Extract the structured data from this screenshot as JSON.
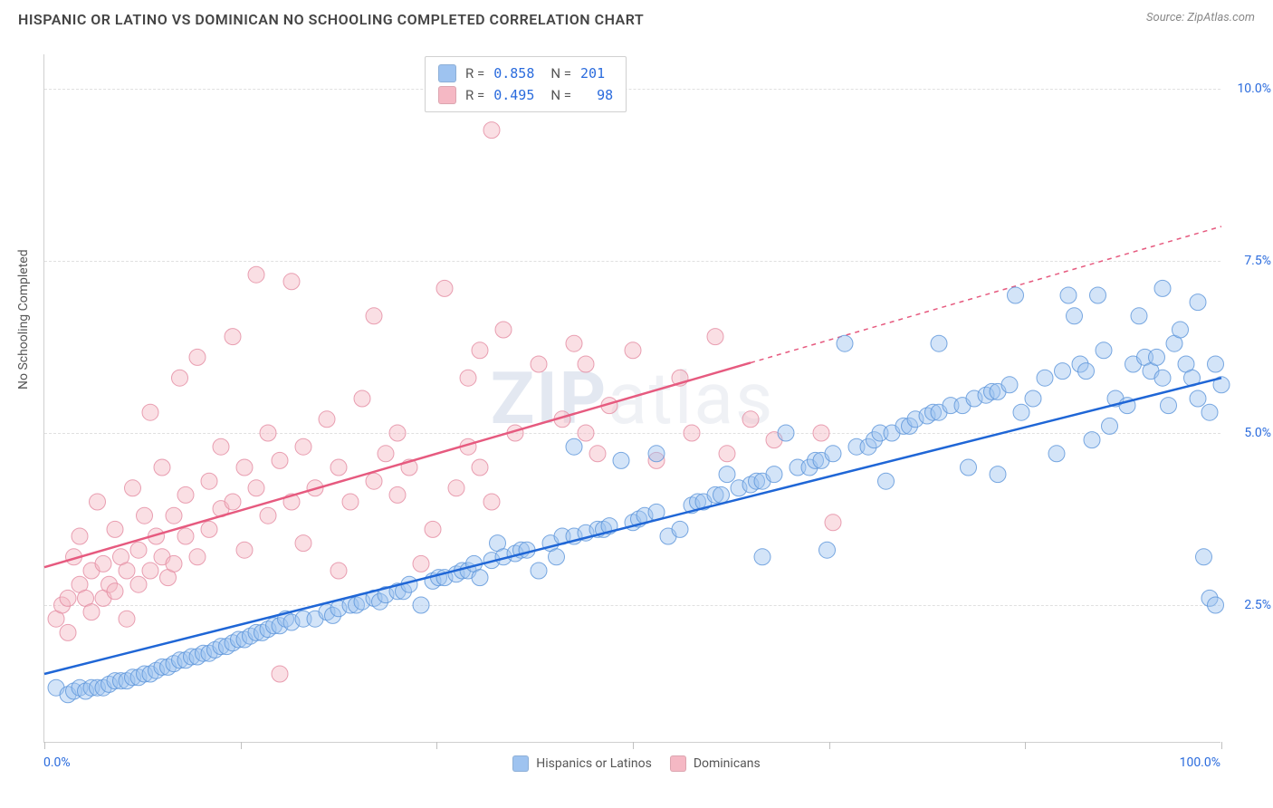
{
  "title": "HISPANIC OR LATINO VS DOMINICAN NO SCHOOLING COMPLETED CORRELATION CHART",
  "source_label": "Source: ZipAtlas.com",
  "y_axis_label": "No Schooling Completed",
  "watermark": {
    "bold": "ZIP",
    "rest": "atlas"
  },
  "chart": {
    "type": "scatter",
    "xlim": [
      0,
      100
    ],
    "ylim": [
      0.5,
      10.5
    ],
    "x_tick_positions": [
      0,
      16.67,
      33.33,
      50,
      66.67,
      83.33,
      100
    ],
    "x_tick_labels_shown": {
      "left": "0.0%",
      "right": "100.0%"
    },
    "y_gridlines": [
      2.5,
      5.0,
      7.5,
      10.0
    ],
    "y_tick_labels": [
      "2.5%",
      "5.0%",
      "7.5%",
      "10.0%"
    ],
    "background_color": "#ffffff",
    "grid_color": "#e0e0e0",
    "axis_color": "#d0d0d0",
    "marker_radius": 9,
    "marker_opacity": 0.45,
    "marker_stroke_opacity": 0.8,
    "line_width": 2.5
  },
  "stats_legend": {
    "rows": [
      {
        "color": "#9ec3f0",
        "r_label": "R =",
        "r_value": "0.858",
        "n_label": "N =",
        "n_value": "201"
      },
      {
        "color": "#f5b8c4",
        "r_label": "R =",
        "r_value": "0.495",
        "n_label": "N =",
        "n_value": "  98"
      }
    ],
    "value_color": "#2a6bdd"
  },
  "bottom_legend": {
    "items": [
      {
        "label": "Hispanics or Latinos",
        "color": "#9ec3f0"
      },
      {
        "label": "Dominicans",
        "color": "#f5b8c4"
      }
    ]
  },
  "series": {
    "hispanic": {
      "color_fill": "#9ec3f0",
      "color_stroke": "#5a94d9",
      "trend": {
        "x1": 0,
        "y1": 1.5,
        "x2": 100,
        "y2": 5.8,
        "dash_from_x": null,
        "color": "#1f66d6"
      },
      "points": [
        [
          1,
          1.3
        ],
        [
          2,
          1.2
        ],
        [
          2.5,
          1.25
        ],
        [
          3,
          1.3
        ],
        [
          3.5,
          1.25
        ],
        [
          4,
          1.3
        ],
        [
          4.5,
          1.3
        ],
        [
          5,
          1.3
        ],
        [
          5.5,
          1.35
        ],
        [
          6,
          1.4
        ],
        [
          6.5,
          1.4
        ],
        [
          7,
          1.4
        ],
        [
          7.5,
          1.45
        ],
        [
          8,
          1.45
        ],
        [
          8.5,
          1.5
        ],
        [
          9,
          1.5
        ],
        [
          9.5,
          1.55
        ],
        [
          10,
          1.6
        ],
        [
          10.5,
          1.6
        ],
        [
          11,
          1.65
        ],
        [
          11.5,
          1.7
        ],
        [
          12,
          1.7
        ],
        [
          12.5,
          1.75
        ],
        [
          13,
          1.75
        ],
        [
          13.5,
          1.8
        ],
        [
          14,
          1.8
        ],
        [
          14.5,
          1.85
        ],
        [
          15,
          1.9
        ],
        [
          15.5,
          1.9
        ],
        [
          16,
          1.95
        ],
        [
          16.5,
          2.0
        ],
        [
          17,
          2.0
        ],
        [
          17.5,
          2.05
        ],
        [
          18,
          2.1
        ],
        [
          18.5,
          2.1
        ],
        [
          19,
          2.15
        ],
        [
          19.5,
          2.2
        ],
        [
          20,
          2.2
        ],
        [
          20.5,
          2.3
        ],
        [
          21,
          2.25
        ],
        [
          22,
          2.3
        ],
        [
          23,
          2.3
        ],
        [
          24,
          2.4
        ],
        [
          24.5,
          2.35
        ],
        [
          25,
          2.45
        ],
        [
          26,
          2.5
        ],
        [
          26.5,
          2.5
        ],
        [
          27,
          2.55
        ],
        [
          28,
          2.6
        ],
        [
          28.5,
          2.55
        ],
        [
          29,
          2.65
        ],
        [
          30,
          2.7
        ],
        [
          30.5,
          2.7
        ],
        [
          31,
          2.8
        ],
        [
          32,
          2.5
        ],
        [
          33,
          2.85
        ],
        [
          33.5,
          2.9
        ],
        [
          34,
          2.9
        ],
        [
          35,
          2.95
        ],
        [
          35.5,
          3.0
        ],
        [
          36,
          3.0
        ],
        [
          36.5,
          3.1
        ],
        [
          37,
          2.9
        ],
        [
          38,
          3.15
        ],
        [
          38.5,
          3.4
        ],
        [
          39,
          3.2
        ],
        [
          40,
          3.25
        ],
        [
          40.5,
          3.3
        ],
        [
          41,
          3.3
        ],
        [
          42,
          3.0
        ],
        [
          43,
          3.4
        ],
        [
          43.5,
          3.2
        ],
        [
          44,
          3.5
        ],
        [
          45,
          3.5
        ],
        [
          45,
          4.8
        ],
        [
          46,
          3.55
        ],
        [
          47,
          3.6
        ],
        [
          47.5,
          3.6
        ],
        [
          48,
          3.65
        ],
        [
          49,
          4.6
        ],
        [
          50,
          3.7
        ],
        [
          50.5,
          3.75
        ],
        [
          51,
          3.8
        ],
        [
          52,
          3.85
        ],
        [
          52,
          4.7
        ],
        [
          53,
          3.5
        ],
        [
          54,
          3.6
        ],
        [
          55,
          3.95
        ],
        [
          55.5,
          4.0
        ],
        [
          56,
          4.0
        ],
        [
          57,
          4.1
        ],
        [
          57.5,
          4.1
        ],
        [
          58,
          4.4
        ],
        [
          59,
          4.2
        ],
        [
          60,
          4.25
        ],
        [
          60.5,
          4.3
        ],
        [
          61,
          4.3
        ],
        [
          61,
          3.2
        ],
        [
          62,
          4.4
        ],
        [
          63,
          5.0
        ],
        [
          64,
          4.5
        ],
        [
          65,
          4.5
        ],
        [
          65.5,
          4.6
        ],
        [
          66,
          4.6
        ],
        [
          66.5,
          3.3
        ],
        [
          67,
          4.7
        ],
        [
          68,
          6.3
        ],
        [
          69,
          4.8
        ],
        [
          70,
          4.8
        ],
        [
          70.5,
          4.9
        ],
        [
          71,
          5.0
        ],
        [
          71.5,
          4.3
        ],
        [
          72,
          5.0
        ],
        [
          73,
          5.1
        ],
        [
          73.5,
          5.1
        ],
        [
          74,
          5.2
        ],
        [
          75,
          5.25
        ],
        [
          75.5,
          5.3
        ],
        [
          76,
          5.3
        ],
        [
          76,
          6.3
        ],
        [
          77,
          5.4
        ],
        [
          78,
          5.4
        ],
        [
          78.5,
          4.5
        ],
        [
          79,
          5.5
        ],
        [
          80,
          5.55
        ],
        [
          80.5,
          5.6
        ],
        [
          81,
          5.6
        ],
        [
          81,
          4.4
        ],
        [
          82,
          5.7
        ],
        [
          82.5,
          7.0
        ],
        [
          83,
          5.3
        ],
        [
          84,
          5.5
        ],
        [
          85,
          5.8
        ],
        [
          86,
          4.7
        ],
        [
          86.5,
          5.9
        ],
        [
          87,
          7.0
        ],
        [
          87.5,
          6.7
        ],
        [
          88,
          6.0
        ],
        [
          88.5,
          5.9
        ],
        [
          89,
          4.9
        ],
        [
          89.5,
          7.0
        ],
        [
          90,
          6.2
        ],
        [
          90.5,
          5.1
        ],
        [
          91,
          5.5
        ],
        [
          92,
          5.4
        ],
        [
          92.5,
          6.0
        ],
        [
          93,
          6.7
        ],
        [
          93.5,
          6.1
        ],
        [
          94,
          5.9
        ],
        [
          94.5,
          6.1
        ],
        [
          95,
          5.8
        ],
        [
          95,
          7.1
        ],
        [
          95.5,
          5.4
        ],
        [
          96,
          6.3
        ],
        [
          96.5,
          6.5
        ],
        [
          97,
          6.0
        ],
        [
          97.5,
          5.8
        ],
        [
          98,
          5.5
        ],
        [
          98,
          6.9
        ],
        [
          98.5,
          3.2
        ],
        [
          99,
          5.3
        ],
        [
          99,
          2.6
        ],
        [
          99.5,
          2.5
        ],
        [
          99.5,
          6.0
        ],
        [
          100,
          5.7
        ]
      ]
    },
    "dominican": {
      "color_fill": "#f5b8c4",
      "color_stroke": "#e38aa0",
      "trend": {
        "x1": 0,
        "y1": 3.05,
        "x2": 100,
        "y2": 8.0,
        "dash_from_x": 60,
        "color": "#e65a7f"
      },
      "points": [
        [
          1,
          2.3
        ],
        [
          1.5,
          2.5
        ],
        [
          2,
          2.6
        ],
        [
          2,
          2.1
        ],
        [
          2.5,
          3.2
        ],
        [
          3,
          2.8
        ],
        [
          3,
          3.5
        ],
        [
          3.5,
          2.6
        ],
        [
          4,
          3.0
        ],
        [
          4,
          2.4
        ],
        [
          4.5,
          4.0
        ],
        [
          5,
          3.1
        ],
        [
          5,
          2.6
        ],
        [
          5.5,
          2.8
        ],
        [
          6,
          3.6
        ],
        [
          6,
          2.7
        ],
        [
          6.5,
          3.2
        ],
        [
          7,
          3.0
        ],
        [
          7,
          2.3
        ],
        [
          7.5,
          4.2
        ],
        [
          8,
          3.3
        ],
        [
          8,
          2.8
        ],
        [
          8.5,
          3.8
        ],
        [
          9,
          3.0
        ],
        [
          9,
          5.3
        ],
        [
          9.5,
          3.5
        ],
        [
          10,
          3.2
        ],
        [
          10,
          4.5
        ],
        [
          10.5,
          2.9
        ],
        [
          11,
          3.8
        ],
        [
          11,
          3.1
        ],
        [
          11.5,
          5.8
        ],
        [
          12,
          3.5
        ],
        [
          12,
          4.1
        ],
        [
          13,
          3.2
        ],
        [
          13,
          6.1
        ],
        [
          14,
          4.3
        ],
        [
          14,
          3.6
        ],
        [
          15,
          4.8
        ],
        [
          15,
          3.9
        ],
        [
          16,
          4.0
        ],
        [
          16,
          6.4
        ],
        [
          17,
          4.5
        ],
        [
          17,
          3.3
        ],
        [
          18,
          7.3
        ],
        [
          18,
          4.2
        ],
        [
          19,
          3.8
        ],
        [
          19,
          5.0
        ],
        [
          20,
          4.6
        ],
        [
          20,
          1.5
        ],
        [
          21,
          7.2
        ],
        [
          21,
          4.0
        ],
        [
          22,
          3.4
        ],
        [
          22,
          4.8
        ],
        [
          23,
          4.2
        ],
        [
          24,
          5.2
        ],
        [
          25,
          4.5
        ],
        [
          25,
          3.0
        ],
        [
          26,
          4.0
        ],
        [
          27,
          5.5
        ],
        [
          28,
          4.3
        ],
        [
          28,
          6.7
        ],
        [
          29,
          4.7
        ],
        [
          30,
          5.0
        ],
        [
          30,
          4.1
        ],
        [
          31,
          4.5
        ],
        [
          32,
          3.1
        ],
        [
          33,
          3.6
        ],
        [
          34,
          7.1
        ],
        [
          35,
          4.2
        ],
        [
          36,
          5.8
        ],
        [
          36,
          4.8
        ],
        [
          37,
          6.2
        ],
        [
          37,
          4.5
        ],
        [
          38,
          9.4
        ],
        [
          38,
          4.0
        ],
        [
          39,
          6.5
        ],
        [
          40,
          5.0
        ],
        [
          42,
          6.0
        ],
        [
          44,
          5.2
        ],
        [
          45,
          6.3
        ],
        [
          46,
          5.0
        ],
        [
          46,
          6.0
        ],
        [
          47,
          4.7
        ],
        [
          48,
          5.4
        ],
        [
          50,
          6.2
        ],
        [
          52,
          4.6
        ],
        [
          54,
          5.8
        ],
        [
          55,
          5.0
        ],
        [
          57,
          6.4
        ],
        [
          58,
          4.7
        ],
        [
          60,
          5.2
        ],
        [
          62,
          4.9
        ],
        [
          66,
          5.0
        ],
        [
          67,
          3.7
        ]
      ]
    }
  }
}
